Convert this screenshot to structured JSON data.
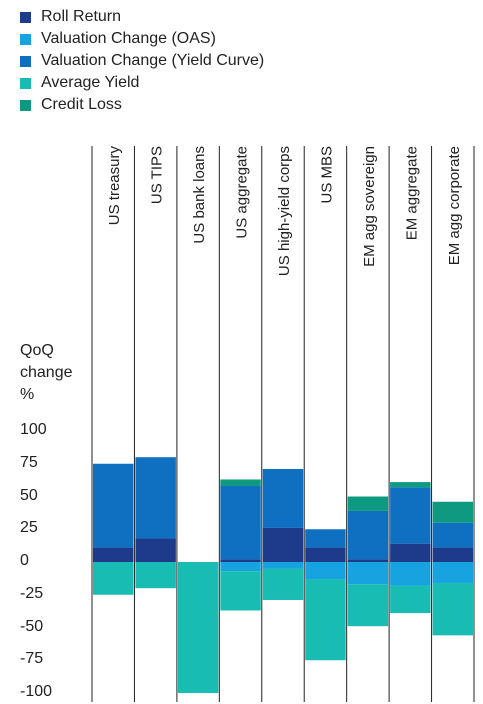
{
  "chart_data": {
    "type": "bar",
    "stacked": true,
    "title": "",
    "ylabel": "QoQ change %",
    "ylim": [
      -100,
      100
    ],
    "yticks": [
      100,
      75,
      50,
      25,
      0,
      -25,
      -50,
      -75,
      -100
    ],
    "categories": [
      "US treasury",
      "US TIPS",
      "US bank loans",
      "US aggregate",
      "US high-yield corps",
      "US MBS",
      "EM agg sovereign",
      "EM aggregate",
      "EM agg corporate"
    ],
    "legend_position": "top-left",
    "series": [
      {
        "name": "Roll Return",
        "color": "#1e3a8a",
        "values": [
          11,
          18,
          0,
          2,
          26,
          11,
          2,
          14,
          11
        ]
      },
      {
        "name": "Valuation Change (OAS)",
        "color": "#16a3e0",
        "values": [
          0,
          0,
          0,
          -7,
          -5,
          -13,
          -17,
          -18,
          -16
        ]
      },
      {
        "name": "Valuation Change (Yield Curve)",
        "color": "#0f6fc0",
        "values": [
          64,
          62,
          0,
          56,
          45,
          14,
          37,
          43,
          19
        ]
      },
      {
        "name": "Average Yield",
        "color": "#19bcb3",
        "values": [
          -25,
          -20,
          -100,
          -30,
          -24,
          -62,
          -32,
          -21,
          -40
        ]
      },
      {
        "name": "Credit Loss",
        "color": "#0e9a80",
        "values": [
          0,
          0,
          0,
          5,
          0,
          0,
          11,
          4,
          16
        ]
      }
    ]
  }
}
